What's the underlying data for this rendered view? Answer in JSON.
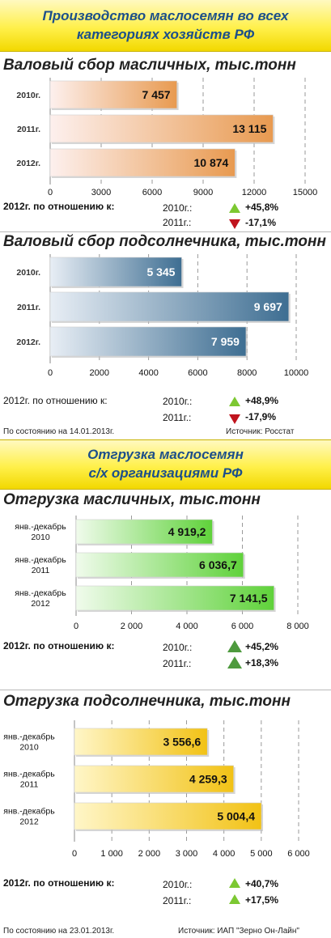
{
  "banner1": {
    "line1": "Производство маслосемян во всех",
    "line2": "категориях хозяйств РФ"
  },
  "banner2": {
    "line1": "Отгрузка маслосемян",
    "line2": "с/х организациями РФ"
  },
  "common": {
    "ratio_label": "2012г. по отношению к:",
    "y2010": "2010г.:",
    "y2011": "2011г.:"
  },
  "colors": {
    "orange": "#e89a50",
    "steel": "#3e6e92",
    "green": "#5fd23a",
    "gold": "#f2c215",
    "banner": "#fff04a",
    "up": "#7cc832",
    "down": "#c0141e"
  },
  "cmp1": {
    "p2010": "+45,8%",
    "p2011": "-17,1%",
    "dir2010": "up",
    "dir2011": "down"
  },
  "cmp2": {
    "p2010": "+48,9%",
    "p2011": "-17,9%",
    "dir2010": "up",
    "dir2011": "down"
  },
  "cmp3": {
    "p2010": "+45,2%",
    "p2011": "+18,3%",
    "dir2010": "up",
    "dir2011": "up"
  },
  "cmp4": {
    "p2010": "+40,7%",
    "p2011": "+17,5%",
    "dir2010": "up",
    "dir2011": "up"
  },
  "footer1": {
    "left": "По состоянию на 14.01.2013г.",
    "right": "Источник: Росстат"
  },
  "footer2": {
    "left": "По состоянию на 23.01.2013г.",
    "right": "Источник: ИАП \"Зерно Он-Лайн\""
  },
  "chart_data": [
    {
      "type": "bar",
      "orientation": "horizontal",
      "title": "Валовый сбор масличных, тыс.тонн",
      "categories": [
        "2010г.",
        "2011г.",
        "2012г."
      ],
      "values": [
        7457,
        13115,
        10874
      ],
      "labels": [
        "7 457",
        "13 115",
        "10 874"
      ],
      "xlim": [
        0,
        15000
      ],
      "xticks": [
        "0",
        "3000",
        "6000",
        "9000",
        "12000",
        "15000"
      ],
      "grid": "vertical dashed",
      "color": "orange"
    },
    {
      "type": "bar",
      "orientation": "horizontal",
      "title": "Валовый сбор подсолнечника, тыс.тонн",
      "categories": [
        "2010г.",
        "2011г.",
        "2012г."
      ],
      "values": [
        5345,
        9697,
        7959
      ],
      "labels": [
        "5 345",
        "9 697",
        "7 959"
      ],
      "xlim": [
        0,
        10000
      ],
      "xticks": [
        "0",
        "2000",
        "4000",
        "6000",
        "8000",
        "10000"
      ],
      "grid": "vertical dashed",
      "color": "steel"
    },
    {
      "type": "bar",
      "orientation": "horizontal",
      "title": "Отгрузка масличных, тыс.тонн",
      "categories": [
        [
          "янв.-декабрь",
          "2010"
        ],
        [
          "янв.-декабрь",
          "2011"
        ],
        [
          "янв.-декабрь",
          "2012"
        ]
      ],
      "values": [
        4919.2,
        6036.7,
        7141.5
      ],
      "labels": [
        "4 919,2",
        "6 036,7",
        "7 141,5"
      ],
      "xlim": [
        0,
        8000
      ],
      "xticks": [
        "0",
        "2 000",
        "4 000",
        "6 000",
        "8 000"
      ],
      "grid": "vertical dashed",
      "color": "green"
    },
    {
      "type": "bar",
      "orientation": "horizontal",
      "title": "Отгрузка подсолнечника, тыс.тонн",
      "categories": [
        [
          "янв.-декабрь",
          "2010"
        ],
        [
          "янв.-декабрь",
          "2011"
        ],
        [
          "янв.-декабрь",
          "2012"
        ]
      ],
      "values": [
        3556.6,
        4259.3,
        5004.4
      ],
      "labels": [
        "3 556,6",
        "4 259,3",
        "5 004,4"
      ],
      "xlim": [
        0,
        6000
      ],
      "xticks": [
        "0",
        "1 000",
        "2 000",
        "3 000",
        "4 000",
        "5 000",
        "6 000"
      ],
      "grid": "vertical dashed",
      "color": "gold"
    }
  ]
}
